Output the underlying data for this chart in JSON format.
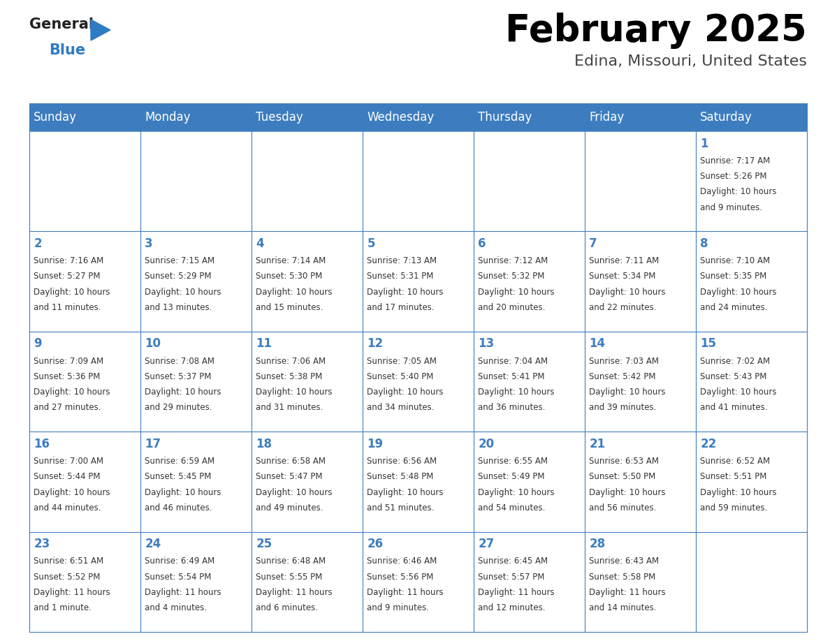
{
  "title": "February 2025",
  "subtitle": "Edina, Missouri, United States",
  "header_bg": "#3D7DBF",
  "header_text_color": "#FFFFFF",
  "cell_bg": "#FFFFFF",
  "border_color": "#3D7DBF",
  "day_names": [
    "Sunday",
    "Monday",
    "Tuesday",
    "Wednesday",
    "Thursday",
    "Friday",
    "Saturday"
  ],
  "title_color": "#000000",
  "subtitle_color": "#444444",
  "day_number_color": "#3D7DBF",
  "cell_text_color": "#333333",
  "logo_general_color": "#222222",
  "logo_blue_color": "#2E7BC4",
  "weeks": [
    [
      {
        "day": "",
        "info": ""
      },
      {
        "day": "",
        "info": ""
      },
      {
        "day": "",
        "info": ""
      },
      {
        "day": "",
        "info": ""
      },
      {
        "day": "",
        "info": ""
      },
      {
        "day": "",
        "info": ""
      },
      {
        "day": "1",
        "info": "Sunrise: 7:17 AM\nSunset: 5:26 PM\nDaylight: 10 hours\nand 9 minutes."
      }
    ],
    [
      {
        "day": "2",
        "info": "Sunrise: 7:16 AM\nSunset: 5:27 PM\nDaylight: 10 hours\nand 11 minutes."
      },
      {
        "day": "3",
        "info": "Sunrise: 7:15 AM\nSunset: 5:29 PM\nDaylight: 10 hours\nand 13 minutes."
      },
      {
        "day": "4",
        "info": "Sunrise: 7:14 AM\nSunset: 5:30 PM\nDaylight: 10 hours\nand 15 minutes."
      },
      {
        "day": "5",
        "info": "Sunrise: 7:13 AM\nSunset: 5:31 PM\nDaylight: 10 hours\nand 17 minutes."
      },
      {
        "day": "6",
        "info": "Sunrise: 7:12 AM\nSunset: 5:32 PM\nDaylight: 10 hours\nand 20 minutes."
      },
      {
        "day": "7",
        "info": "Sunrise: 7:11 AM\nSunset: 5:34 PM\nDaylight: 10 hours\nand 22 minutes."
      },
      {
        "day": "8",
        "info": "Sunrise: 7:10 AM\nSunset: 5:35 PM\nDaylight: 10 hours\nand 24 minutes."
      }
    ],
    [
      {
        "day": "9",
        "info": "Sunrise: 7:09 AM\nSunset: 5:36 PM\nDaylight: 10 hours\nand 27 minutes."
      },
      {
        "day": "10",
        "info": "Sunrise: 7:08 AM\nSunset: 5:37 PM\nDaylight: 10 hours\nand 29 minutes."
      },
      {
        "day": "11",
        "info": "Sunrise: 7:06 AM\nSunset: 5:38 PM\nDaylight: 10 hours\nand 31 minutes."
      },
      {
        "day": "12",
        "info": "Sunrise: 7:05 AM\nSunset: 5:40 PM\nDaylight: 10 hours\nand 34 minutes."
      },
      {
        "day": "13",
        "info": "Sunrise: 7:04 AM\nSunset: 5:41 PM\nDaylight: 10 hours\nand 36 minutes."
      },
      {
        "day": "14",
        "info": "Sunrise: 7:03 AM\nSunset: 5:42 PM\nDaylight: 10 hours\nand 39 minutes."
      },
      {
        "day": "15",
        "info": "Sunrise: 7:02 AM\nSunset: 5:43 PM\nDaylight: 10 hours\nand 41 minutes."
      }
    ],
    [
      {
        "day": "16",
        "info": "Sunrise: 7:00 AM\nSunset: 5:44 PM\nDaylight: 10 hours\nand 44 minutes."
      },
      {
        "day": "17",
        "info": "Sunrise: 6:59 AM\nSunset: 5:45 PM\nDaylight: 10 hours\nand 46 minutes."
      },
      {
        "day": "18",
        "info": "Sunrise: 6:58 AM\nSunset: 5:47 PM\nDaylight: 10 hours\nand 49 minutes."
      },
      {
        "day": "19",
        "info": "Sunrise: 6:56 AM\nSunset: 5:48 PM\nDaylight: 10 hours\nand 51 minutes."
      },
      {
        "day": "20",
        "info": "Sunrise: 6:55 AM\nSunset: 5:49 PM\nDaylight: 10 hours\nand 54 minutes."
      },
      {
        "day": "21",
        "info": "Sunrise: 6:53 AM\nSunset: 5:50 PM\nDaylight: 10 hours\nand 56 minutes."
      },
      {
        "day": "22",
        "info": "Sunrise: 6:52 AM\nSunset: 5:51 PM\nDaylight: 10 hours\nand 59 minutes."
      }
    ],
    [
      {
        "day": "23",
        "info": "Sunrise: 6:51 AM\nSunset: 5:52 PM\nDaylight: 11 hours\nand 1 minute."
      },
      {
        "day": "24",
        "info": "Sunrise: 6:49 AM\nSunset: 5:54 PM\nDaylight: 11 hours\nand 4 minutes."
      },
      {
        "day": "25",
        "info": "Sunrise: 6:48 AM\nSunset: 5:55 PM\nDaylight: 11 hours\nand 6 minutes."
      },
      {
        "day": "26",
        "info": "Sunrise: 6:46 AM\nSunset: 5:56 PM\nDaylight: 11 hours\nand 9 minutes."
      },
      {
        "day": "27",
        "info": "Sunrise: 6:45 AM\nSunset: 5:57 PM\nDaylight: 11 hours\nand 12 minutes."
      },
      {
        "day": "28",
        "info": "Sunrise: 6:43 AM\nSunset: 5:58 PM\nDaylight: 11 hours\nand 14 minutes."
      },
      {
        "day": "",
        "info": ""
      }
    ]
  ]
}
